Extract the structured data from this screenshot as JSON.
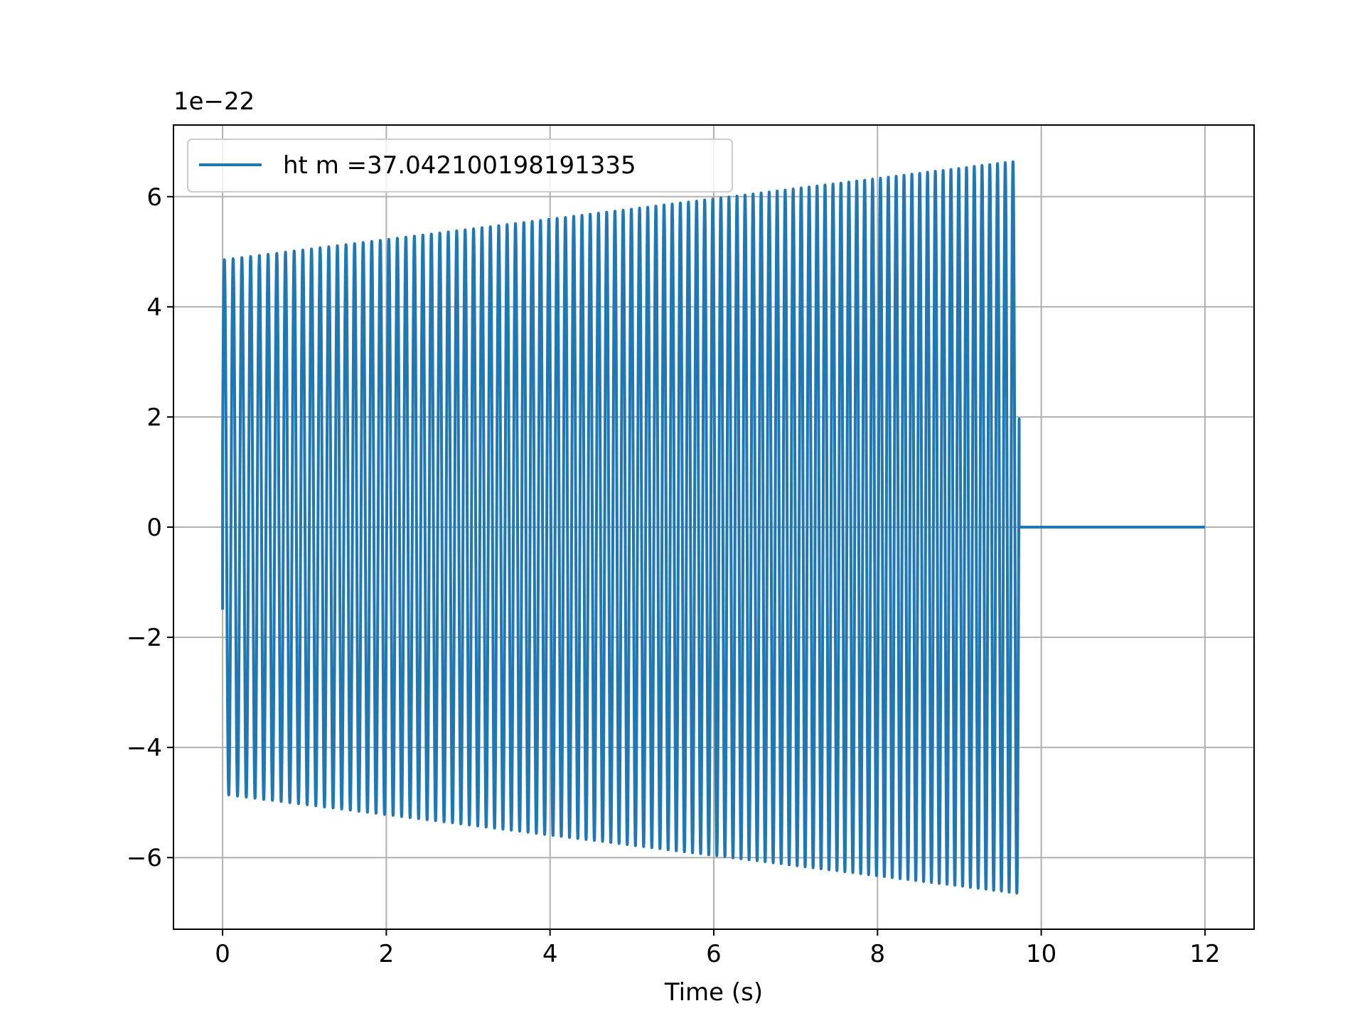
{
  "chart_data": {
    "type": "line",
    "title": "",
    "xlabel": "Time (s)",
    "ylabel": "",
    "y_offset_label": "1e−22",
    "xlim": [
      -0.6,
      12.6
    ],
    "ylim": [
      -7.3,
      7.3
    ],
    "x_ticks": [
      0,
      2,
      4,
      6,
      8,
      10,
      12
    ],
    "x_tick_labels": [
      "0",
      "2",
      "4",
      "6",
      "8",
      "10",
      "12"
    ],
    "y_ticks": [
      -6,
      -4,
      -2,
      0,
      2,
      4,
      6
    ],
    "y_tick_labels": [
      "−6",
      "−4",
      "−2",
      "0",
      "2",
      "4",
      "6"
    ],
    "grid": true,
    "legend_position": "top-left",
    "series": [
      {
        "name": "ht m =37.042100198191335",
        "color": "#1f77b4",
        "signal": {
          "start_time": 0.0,
          "merger_time": 9.73,
          "end_time": 12.0,
          "initial_amplitude": 4.85,
          "final_amplitude": 6.65,
          "cycles": 97,
          "initial_value": -1.5,
          "post_merger_value": 0.0
        }
      }
    ]
  }
}
